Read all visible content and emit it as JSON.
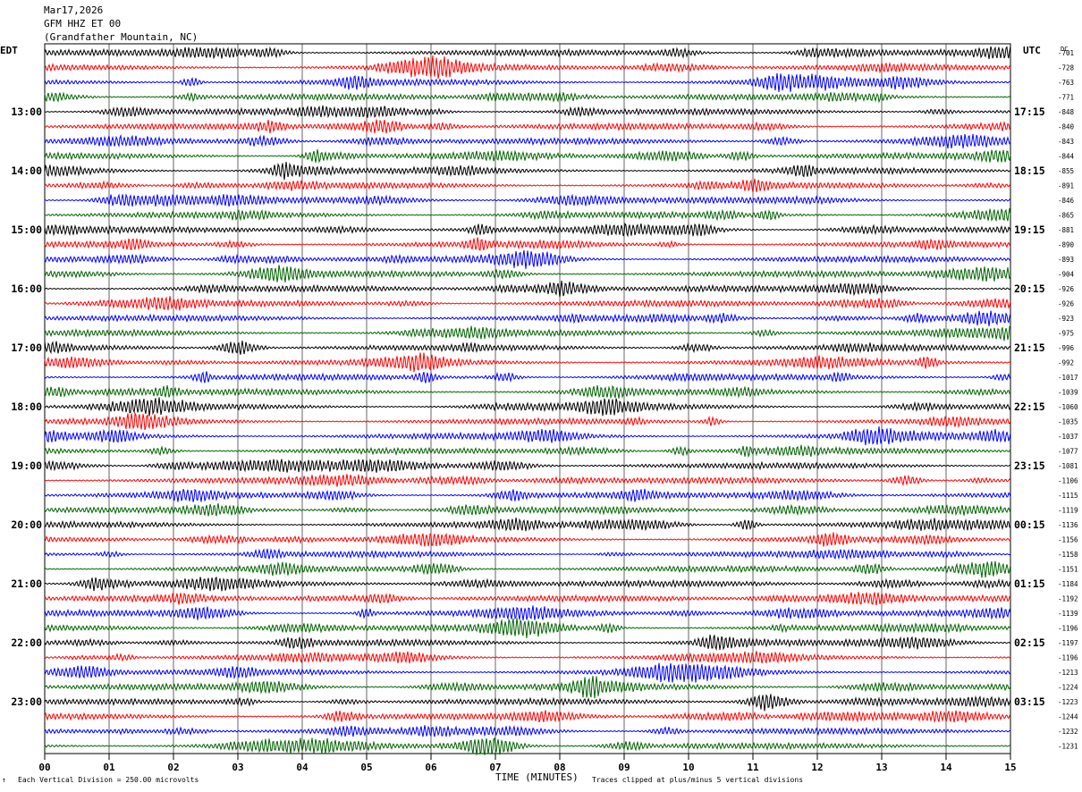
{
  "header": {
    "date": "Mar17,2026",
    "station": "GFM HHZ ET 00",
    "location": "(Grandfather Mountain, NC)"
  },
  "left_timezone": "EDT",
  "right_timezone": "UTC",
  "dc_label": "DC",
  "chart_data": {
    "type": "line",
    "xlabel": "TIME (MINUTES)",
    "x_ticks": [
      "00",
      "01",
      "02",
      "03",
      "04",
      "05",
      "06",
      "07",
      "08",
      "09",
      "10",
      "11",
      "12",
      "13",
      "14",
      "15"
    ],
    "xlim": [
      0,
      15
    ],
    "trace_colors": [
      "#000000",
      "#ff0000",
      "#0000ff",
      "#006400"
    ],
    "left_hour_labels": [
      "13:00",
      "14:00",
      "15:00",
      "16:00",
      "17:00",
      "18:00",
      "19:00",
      "20:00",
      "21:00",
      "22:00",
      "23:00"
    ],
    "right_hour_labels": [
      "17:15",
      "18:15",
      "19:15",
      "20:15",
      "21:15",
      "22:15",
      "23:15",
      "00:15",
      "01:15",
      "02:15",
      "03:15"
    ],
    "dc_offsets": [
      -701,
      -728,
      -763,
      -771,
      -848,
      -840,
      -843,
      -844,
      -855,
      -891,
      -846,
      -865,
      -881,
      -890,
      -893,
      -904,
      -926,
      -926,
      -923,
      -975,
      -996,
      -992,
      -1017,
      -1039,
      -1060,
      -1035,
      -1037,
      -1077,
      -1081,
      -1106,
      -1115,
      -1119,
      -1136,
      -1156,
      -1158,
      -1151,
      -1184,
      -1192,
      -1139,
      -1196,
      -1197,
      -1196,
      -1213,
      -1224,
      -1223,
      -1244,
      -1232,
      -1231
    ],
    "grid": true
  },
  "footer": {
    "scale_note": "Each Vertical Division =  250.00 microvolts",
    "clip_note": "Traces clipped at plus/minus 5 vertical divisions",
    "corner_mark": "↑"
  }
}
